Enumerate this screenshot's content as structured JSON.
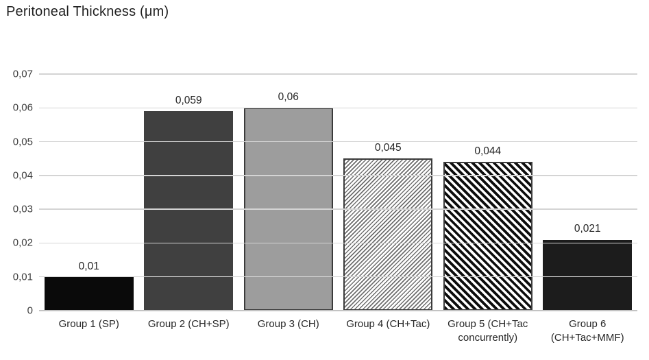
{
  "title": "Peritoneal Thickness (μm)",
  "colors": {
    "background": "#ffffff",
    "title_text": "#1f1f1f",
    "tick_text": "#3d3d3d",
    "label_text": "#262626",
    "gridline": "#d4d4d4",
    "axis_line": "#c3c3c3"
  },
  "chart_data": {
    "type": "bar",
    "title": "Peritoneal Thickness (μm)",
    "categories": [
      "Group 1 (SP)",
      "Group 2 (CH+SP)",
      "Group 3 (CH)",
      "Group 4 (CH+Tac)",
      "Group 5 (CH+Tac concurrently)",
      "Group 6 (CH+Tac+MMF)"
    ],
    "values": [
      0.01,
      0.059,
      0.06,
      0.045,
      0.044,
      0.021
    ],
    "value_labels": [
      "0,01",
      "0,059",
      "0,06",
      "0,045",
      "0,044",
      "0,021"
    ],
    "xlabel": "",
    "ylabel": "",
    "ylim": [
      0,
      0.07
    ],
    "ytick_step": 0.01,
    "ytick_labels": [
      "0,07",
      "0,06",
      "0,05",
      "0,04",
      "0,03",
      "0,02",
      "0,01",
      "0"
    ],
    "decimal_separator": ",",
    "grid": "horizontal",
    "legend": "none",
    "bar_styles": [
      {
        "pattern": "solid",
        "fill": "#0a0a0a",
        "border": "#0a0a0a"
      },
      {
        "pattern": "solid",
        "fill": "#404040",
        "border": "#404040"
      },
      {
        "pattern": "solid",
        "fill": "#9d9d9d",
        "border": "#3b3b3b"
      },
      {
        "pattern": "diagonal-up-thin",
        "fill": "#ffffff",
        "pattern_color": "#6f6f6f",
        "border": "#3b3b3b"
      },
      {
        "pattern": "diagonal-down-thick",
        "fill": "#ffffff",
        "pattern_color": "#0d0d0d",
        "border": "#3b3b3b"
      },
      {
        "pattern": "solid",
        "fill": "#1c1c1c",
        "border": "#1c1c1c"
      }
    ]
  }
}
